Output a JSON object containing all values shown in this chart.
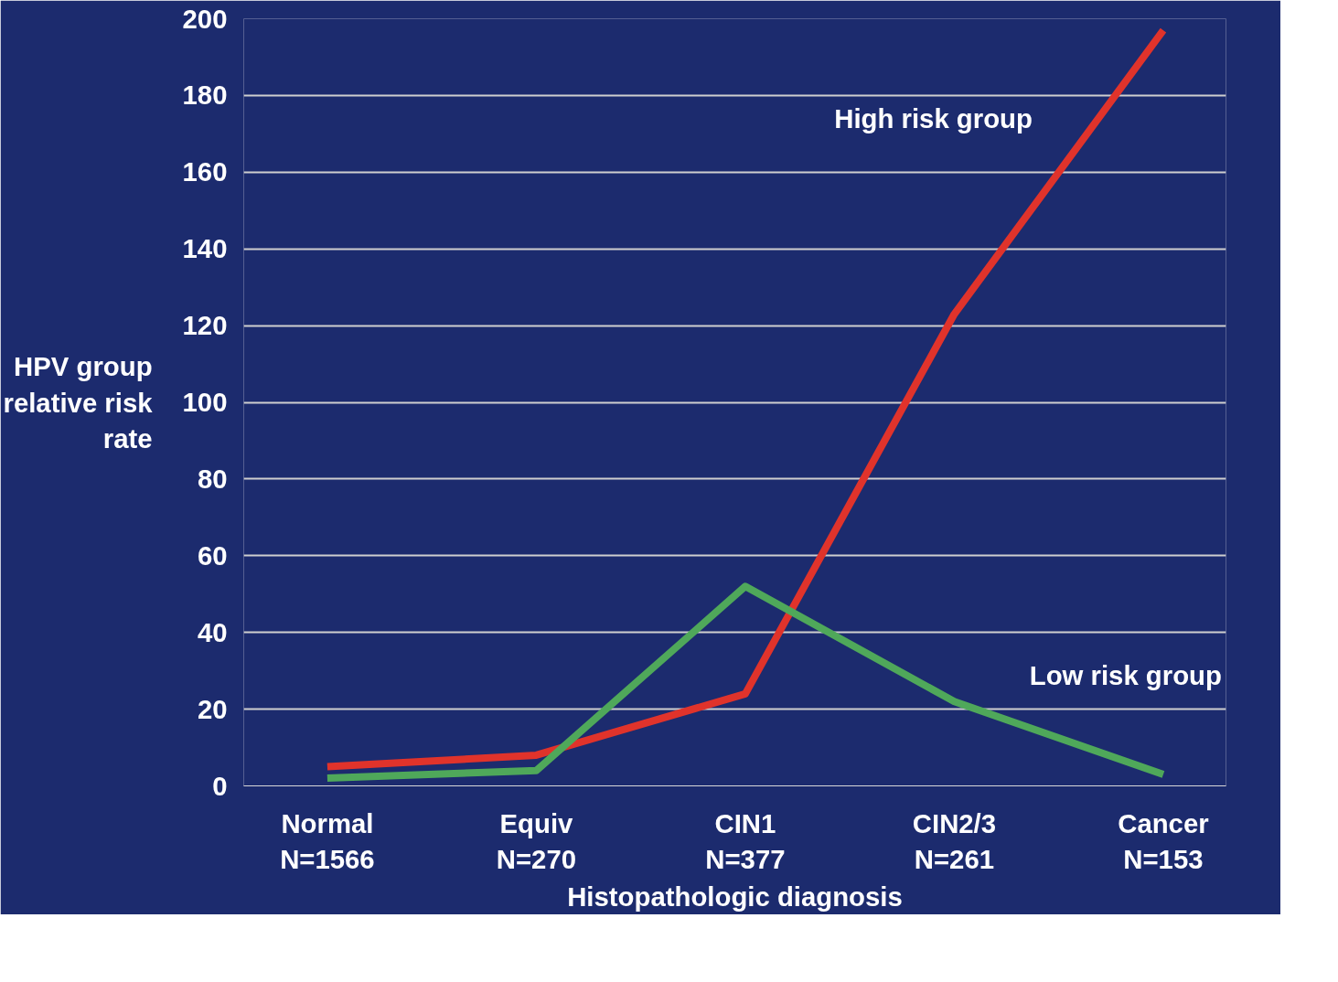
{
  "chart_data": {
    "type": "line",
    "categories": [
      "Normal\nN=1566",
      "Equiv\nN=270",
      "CIN1\nN=377",
      "CIN2/3\nN=261",
      "Cancer\nN=153"
    ],
    "series": [
      {
        "name": "High risk group",
        "color": "#e0332b",
        "values": [
          5,
          8,
          24,
          123,
          197
        ]
      },
      {
        "name": "Low risk group",
        "color": "#4fa85a",
        "values": [
          2,
          4,
          52,
          22,
          3
        ]
      }
    ],
    "xlabel": "Histopathologic diagnosis",
    "ylabel": "HPV group\nrelative risk\nrate",
    "ylim": [
      0,
      200
    ],
    "yticks": [
      0,
      20,
      40,
      60,
      80,
      100,
      120,
      140,
      160,
      180,
      200
    ],
    "grid": "y",
    "legend": false,
    "marker": "none",
    "line_style": "solid"
  }
}
